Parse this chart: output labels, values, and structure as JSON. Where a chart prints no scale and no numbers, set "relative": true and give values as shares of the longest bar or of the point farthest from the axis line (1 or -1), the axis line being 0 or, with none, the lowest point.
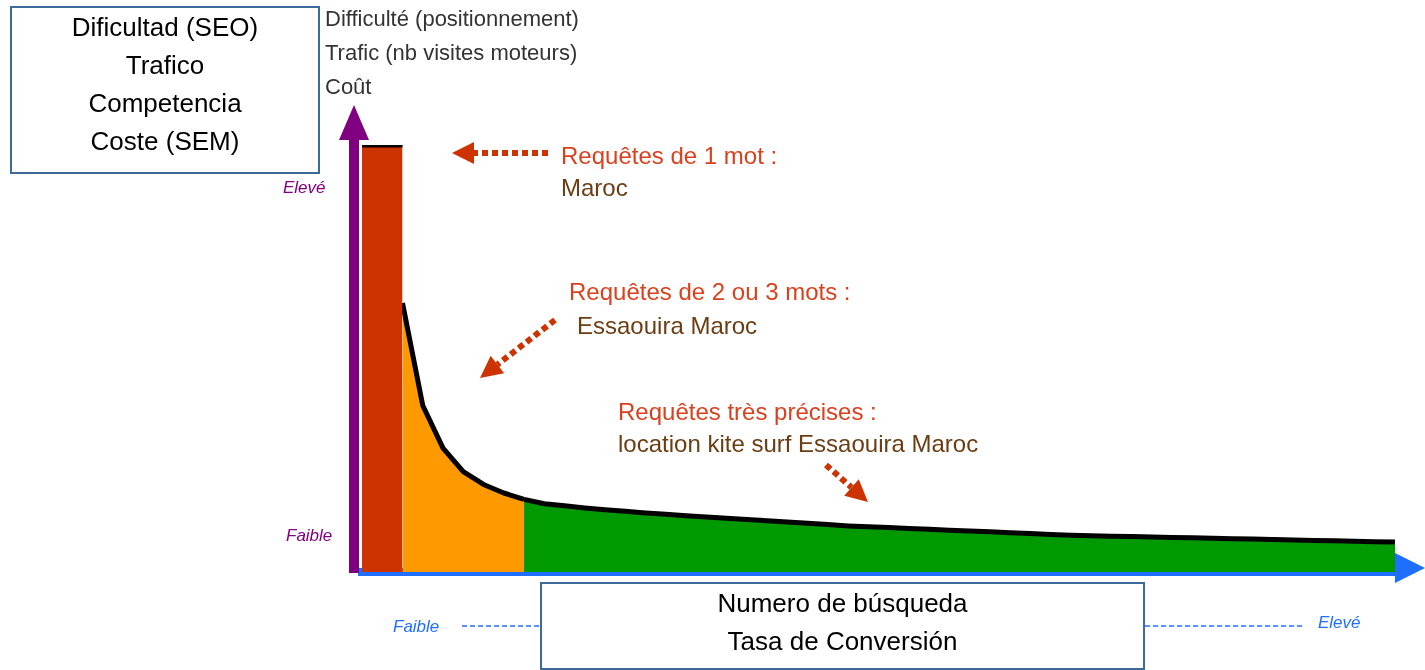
{
  "chart_data": {
    "type": "area",
    "relative": true,
    "ylabel": "Dificultad (SEO)\nTrafico\nCompetencia\nCoste (SEM)",
    "xlabel": "Numero de búsqueda\nTasa de Conversión",
    "categories": [
      null,
      null,
      null,
      null,
      null,
      null,
      null,
      null,
      null,
      null,
      null,
      null,
      null,
      null,
      null,
      null,
      null,
      null,
      null,
      null,
      null,
      null,
      null,
      null,
      null,
      null,
      null,
      null,
      null,
      null,
      null,
      null,
      null,
      null,
      null,
      null,
      null,
      null,
      null,
      null,
      null,
      null,
      null,
      null,
      null,
      null,
      null,
      null,
      null,
      null,
      null,
      null
    ],
    "series": [
      {
        "color": "#cc3300",
        "values": [
          1,
          1,
          1,
          null,
          null,
          null,
          null,
          null,
          null,
          null,
          null,
          null,
          null,
          null,
          null,
          null,
          null,
          null,
          null,
          null,
          null,
          null,
          null,
          null,
          null,
          null,
          null,
          null,
          null,
          null,
          null,
          null,
          null,
          null,
          null,
          null,
          null,
          null,
          null,
          null,
          null,
          null,
          null,
          null,
          null,
          null,
          null,
          null,
          null,
          null,
          null,
          null
        ]
      },
      {
        "color": "#ff9900",
        "values": [
          null,
          null,
          0.63,
          0.39,
          0.29,
          0.235,
          0.205,
          0.185,
          0.17,
          null,
          null,
          null,
          null,
          null,
          null,
          null,
          null,
          null,
          null,
          null,
          null,
          null,
          null,
          null,
          null,
          null,
          null,
          null,
          null,
          null,
          null,
          null,
          null,
          null,
          null,
          null,
          null,
          null,
          null,
          null,
          null,
          null,
          null,
          null,
          null,
          null,
          null,
          null,
          null,
          null,
          null,
          null
        ]
      },
      {
        "color": "#009900",
        "values": [
          null,
          null,
          null,
          null,
          null,
          null,
          null,
          null,
          0.17,
          0.16,
          0.155,
          0.15,
          0.146,
          0.142,
          0.138,
          0.135,
          0.132,
          0.129,
          0.126,
          0.123,
          0.12,
          0.117,
          0.114,
          0.111,
          0.108,
          0.106,
          0.104,
          0.102,
          0.1,
          0.098,
          0.096,
          0.094,
          0.092,
          0.09,
          0.088,
          0.086,
          0.085,
          0.084,
          0.083,
          0.082,
          0.081,
          0.08,
          0.079,
          0.078,
          0.077,
          0.076,
          0.075,
          0.074,
          0.073,
          0.072,
          0.071,
          0.07
        ]
      }
    ],
    "annotations": [
      "Difficulté (positionnement)",
      "Trafic (nb visites moteurs)",
      "Coût",
      "Elevé",
      "Faible",
      "Faible",
      "Elevé",
      "Requêtes de 1 mot :",
      "Maroc",
      "Requêtes de 2 ou 3 mots :",
      "Essaouira Maroc",
      "Requêtes très précises :",
      "location kite surf Essaouira Maroc"
    ]
  }
}
